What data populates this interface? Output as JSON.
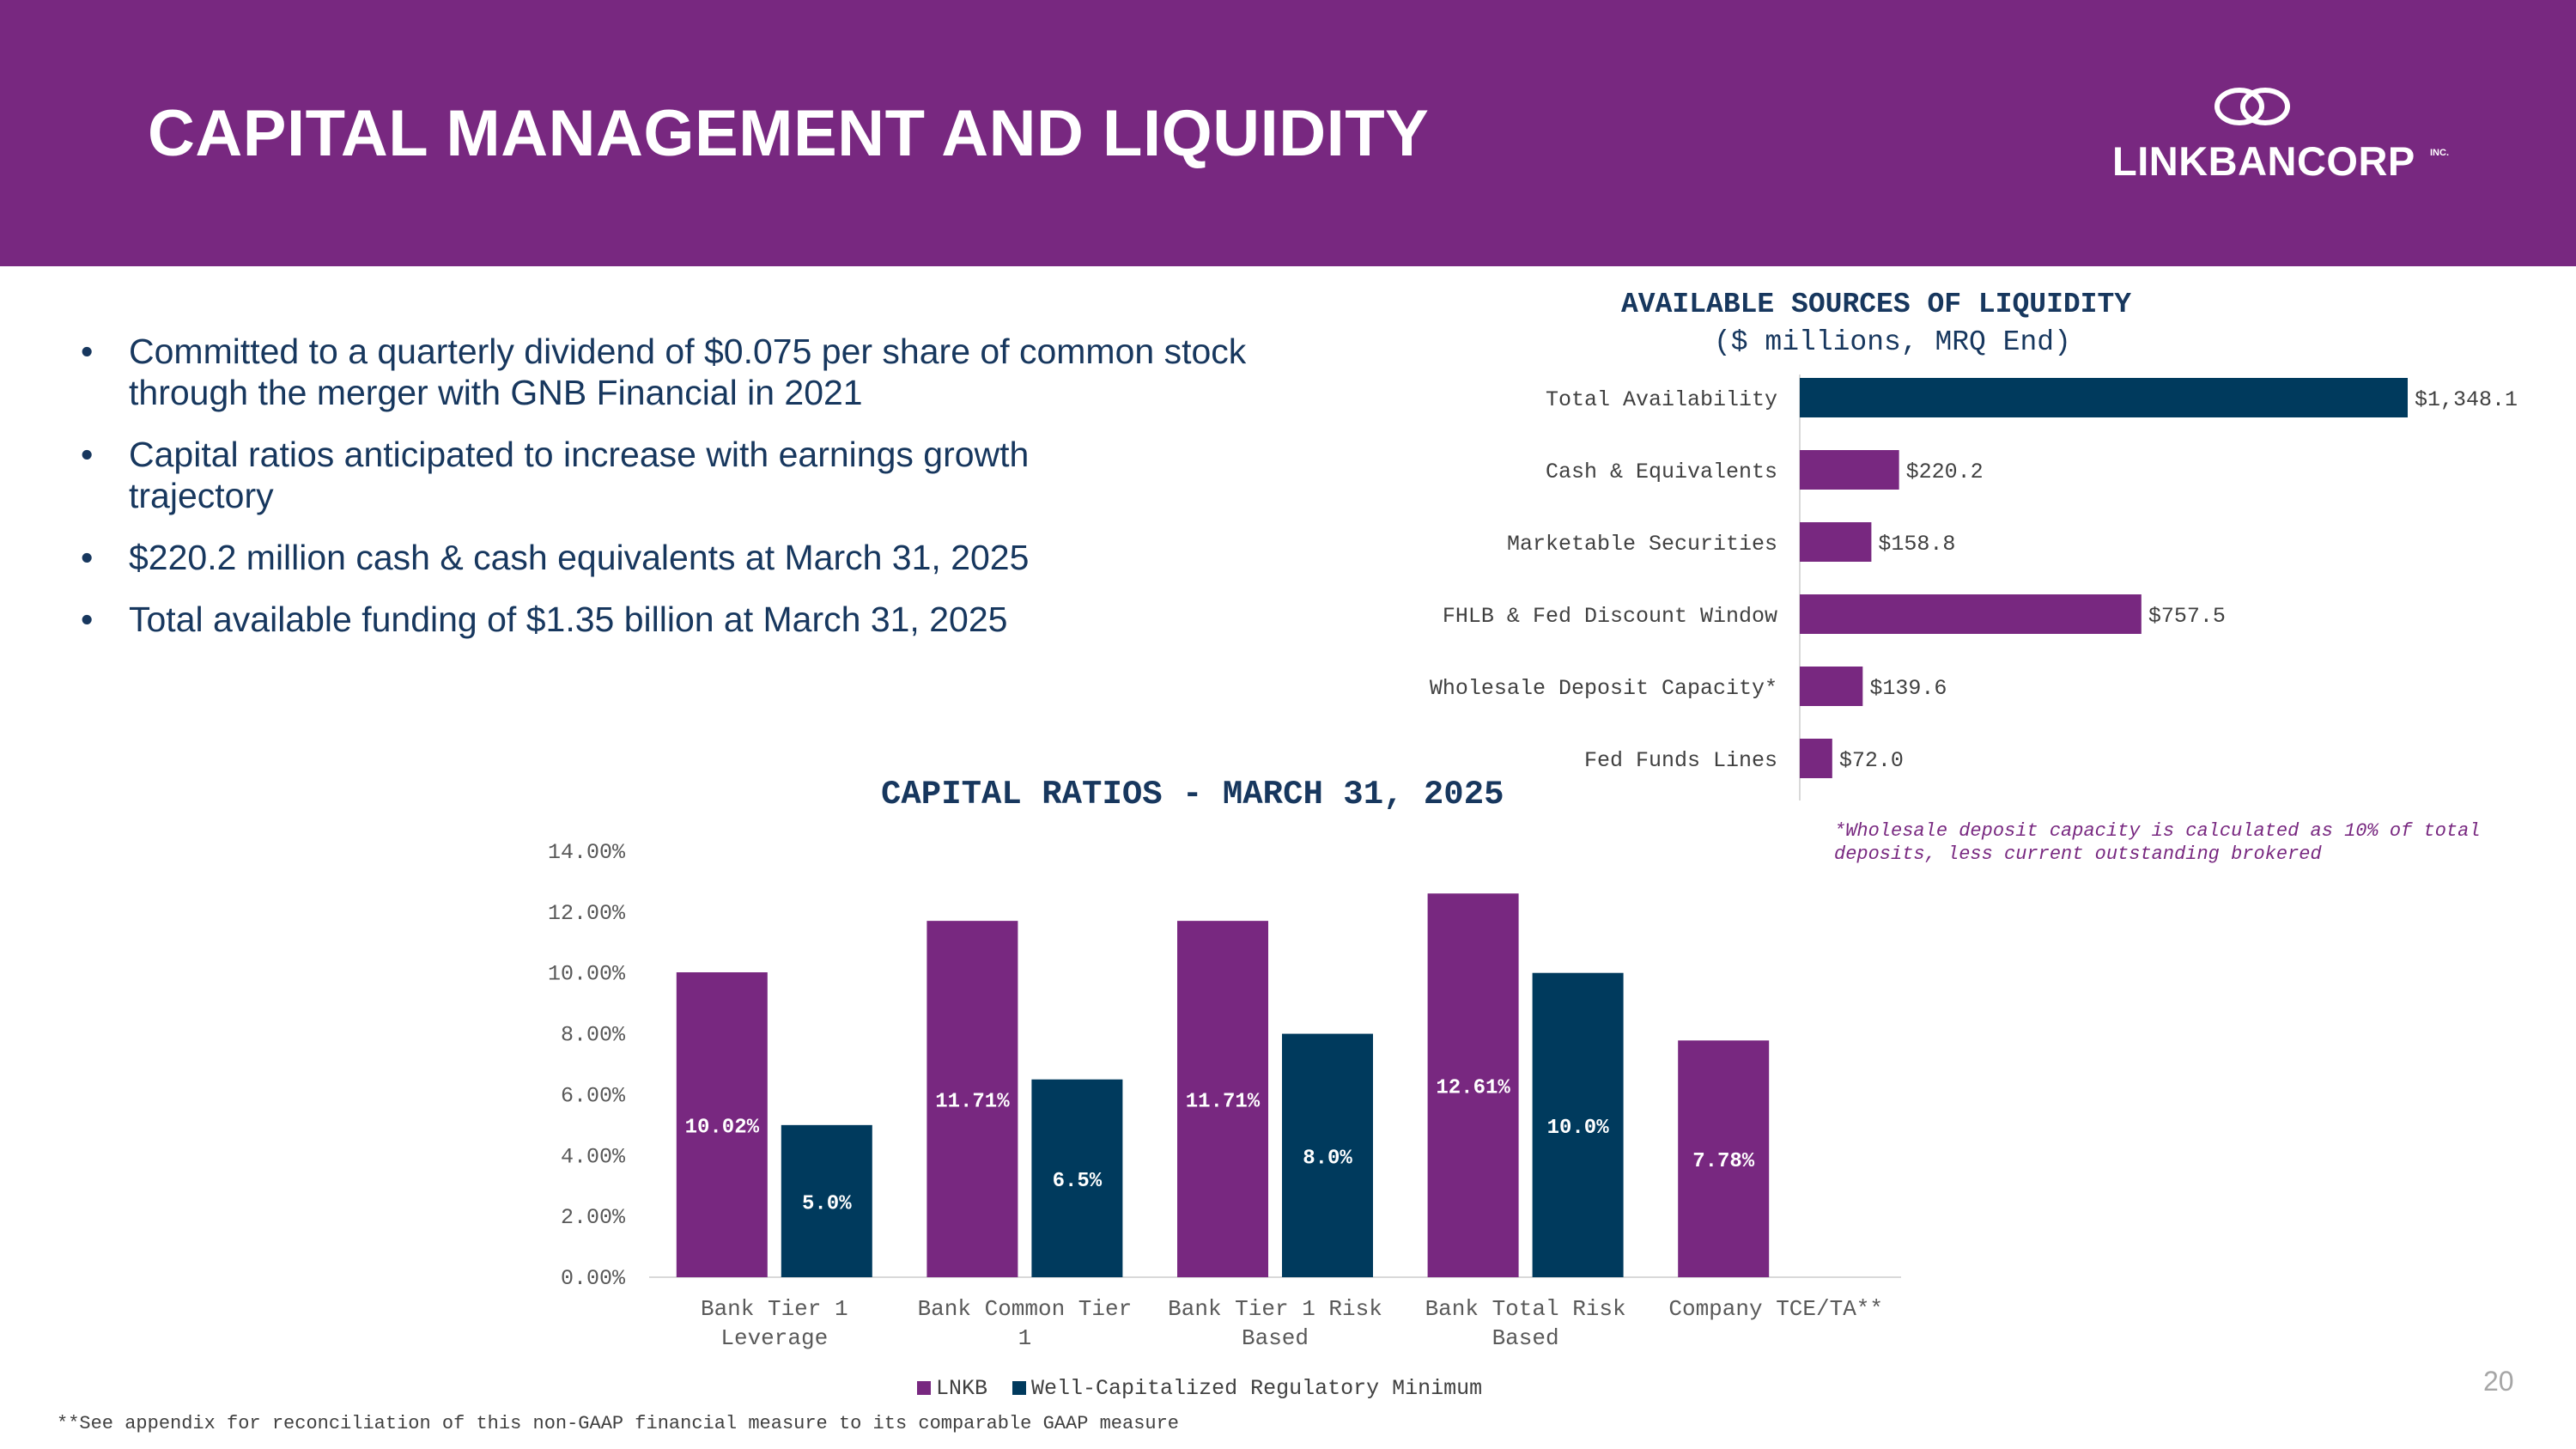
{
  "header": {
    "title": "CAPITAL MANAGEMENT AND LIQUIDITY",
    "logo_text": "LINKBANCORP",
    "logo_inc": "INC."
  },
  "bullets": [
    "Committed to a quarterly dividend of $0.075 per share of common stock through the merger with GNB Financial in 2021",
    "Capital ratios anticipated to increase with earnings growth trajectory",
    "$220.2 million cash & cash equivalents at March 31, 2025",
    "Total available funding of $1.35 billion at March 31, 2025"
  ],
  "bullet_symbol": "•",
  "colors": {
    "purple": "#782880",
    "navy": "#003a5d",
    "text": "#17375e"
  },
  "chart_data": [
    {
      "type": "bar",
      "orientation": "horizontal",
      "title": "AVAILABLE SOURCES OF LIQUIDITY",
      "subtitle": "($ millions, MRQ End)",
      "categories": [
        "Total Availability",
        "Cash & Equivalents",
        "Marketable Securities",
        "FHLB & Fed Discount Window",
        "Wholesale Deposit Capacity*",
        "Fed Funds Lines"
      ],
      "values": [
        1348.1,
        220.2,
        158.8,
        757.5,
        139.6,
        72.0
      ],
      "labels": [
        "$1,348.1",
        "$220.2",
        "$158.8",
        "$757.5",
        "$139.6",
        "$72.0"
      ],
      "bar_colors": [
        "#003a5d",
        "#782880",
        "#782880",
        "#782880",
        "#782880",
        "#782880"
      ],
      "xlim": [
        0,
        1348.1
      ],
      "footnote": "*Wholesale deposit capacity is calculated as 10% of total deposits, less current outstanding brokered"
    },
    {
      "type": "bar",
      "title": "CAPITAL RATIOS - MARCH 31, 2025",
      "categories": [
        [
          "Bank Tier 1",
          "Leverage"
        ],
        [
          "Bank Common Tier",
          "1"
        ],
        [
          "Bank Tier 1 Risk",
          "Based"
        ],
        [
          "Bank Total Risk",
          "Based"
        ],
        [
          "Company TCE/TA**"
        ]
      ],
      "series": [
        {
          "name": "LNKB",
          "color": "#782880",
          "values": [
            10.02,
            11.71,
            11.71,
            12.61,
            7.78
          ],
          "labels": [
            "10.02%",
            "11.71%",
            "11.71%",
            "12.61%",
            "7.78%"
          ]
        },
        {
          "name": "Well-Capitalized Regulatory Minimum",
          "color": "#003a5d",
          "values": [
            5.0,
            6.5,
            8.0,
            10.0,
            null
          ],
          "labels": [
            "5.0%",
            "6.5%",
            "8.0%",
            "10.0%",
            null
          ]
        }
      ],
      "yticks": [
        "0.00%",
        "2.00%",
        "4.00%",
        "6.00%",
        "8.00%",
        "10.00%",
        "12.00%",
        "14.00%"
      ],
      "ylim": [
        0,
        14
      ],
      "legend_position": "bottom"
    }
  ],
  "footnotes": {
    "bottom": "**See appendix for reconciliation of this non-GAAP financial measure to its comparable GAAP measure"
  },
  "page_number": "20"
}
